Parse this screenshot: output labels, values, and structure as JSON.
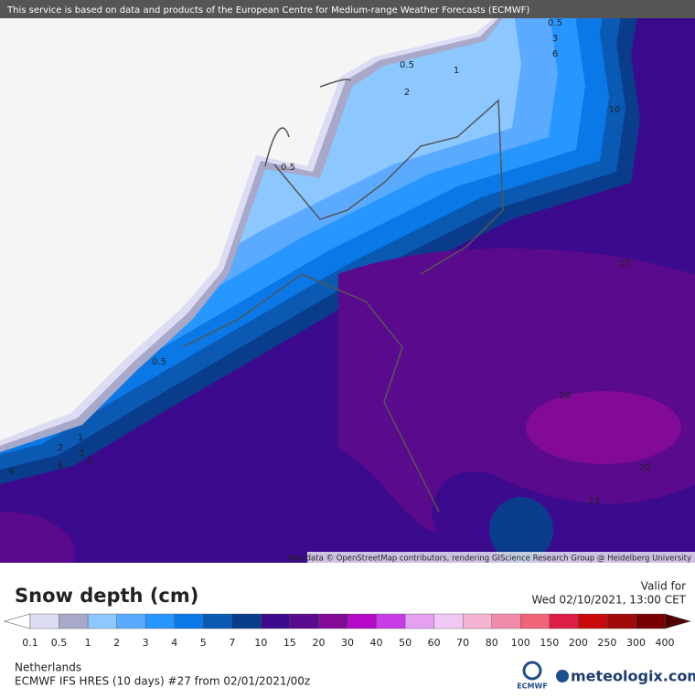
{
  "banner": "This service is based on data and products of the European Centre for Medium-range Weather Forecasts (ECMWF)",
  "attribution": "Map data © OpenStreetMap contributors, rendering GIScience Research Group @ Heidelberg University",
  "contour_labels": [
    "0.5",
    "3",
    "6",
    "0.5",
    "1",
    "2",
    "10",
    "0.5",
    "15",
    "0.5",
    "20",
    "1",
    "2",
    "3",
    "5",
    "6",
    "4",
    "20",
    "15"
  ],
  "legend": {
    "title": "Snow depth (cm)",
    "valid_label": "Valid for",
    "valid_time": "Wed 02/10/2021, 13:00 CET",
    "levels": [
      "0.1",
      "0.5",
      "1",
      "2",
      "3",
      "4",
      "5",
      "7",
      "10",
      "15",
      "20",
      "30",
      "40",
      "50",
      "60",
      "70",
      "80",
      "100",
      "150",
      "200",
      "250",
      "300",
      "400"
    ],
    "colors": [
      "#dcdcf5",
      "#a8a8c8",
      "#8cc8ff",
      "#5aaaff",
      "#2896ff",
      "#0a78e6",
      "#0a5ab4",
      "#0a3c8c",
      "#3c0a8c",
      "#5a0a8c",
      "#820a96",
      "#b40ac8",
      "#c83ce6",
      "#e6a0f0",
      "#f0c8f5",
      "#f5b4d2",
      "#f08caa",
      "#f06478",
      "#dc1e46",
      "#c80a0a",
      "#a00a0a",
      "#780000"
    ],
    "under_color": "#ffffff",
    "over_color": "#500000"
  },
  "footer": {
    "region": "Netherlands",
    "model": "ECMWF IFS HRES (10 days) #27 from  02/01/2021/00z",
    "ecmwf_logo": "ECMWF",
    "brand": "meteologix.com"
  }
}
